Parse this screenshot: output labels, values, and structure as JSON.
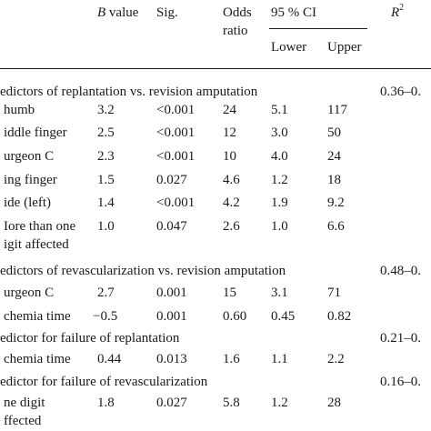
{
  "header": {
    "b_symbol": "B",
    "b_rest": " value",
    "sig": "Sig.",
    "odds_line1": "Odds",
    "odds_line2": "ratio",
    "ci": "95 % CI",
    "lower": "Lower",
    "upper": "Upper",
    "r2_symbol": "R",
    "r2_exp": "2"
  },
  "sections": [
    {
      "title": "edictors of replantation vs. revision amputation",
      "r2": "0.36–0.",
      "rows": [
        {
          "label": "humb",
          "b": "3.2",
          "sig": "<0.001",
          "odds": "24",
          "lower": "5.1",
          "upper": "117"
        },
        {
          "label": "iddle finger",
          "b": "2.5",
          "sig": "<0.001",
          "odds": "12",
          "lower": "3.0",
          "upper": "50"
        },
        {
          "label": "urgeon C",
          "b": "2.3",
          "sig": "<0.001",
          "odds": "10",
          "lower": "4.0",
          "upper": "24"
        },
        {
          "label": "ing finger",
          "b": "1.5",
          "sig": "0.027",
          "odds": "4.6",
          "lower": "1.2",
          "upper": "18"
        },
        {
          "label": "ide (left)",
          "b": "1.4",
          "sig": "<0.001",
          "odds": "4.2",
          "lower": "1.9",
          "upper": "9.2"
        },
        {
          "label": "Iore than one",
          "label2": "igit affected",
          "b": "1.0",
          "sig": "0.047",
          "odds": "2.6",
          "lower": "1.0",
          "upper": "6.6"
        }
      ]
    },
    {
      "title": "edictors of revascularization vs. revision amputation",
      "r2": "0.48–0.",
      "rows": [
        {
          "label": "urgeon C",
          "b": "2.7",
          "sig": "0.001",
          "odds": "15",
          "lower": "3.1",
          "upper": "71"
        },
        {
          "label": "chemia time",
          "b": "−0.5",
          "sig": "0.001",
          "odds": "0.60",
          "lower": "0.45",
          "upper": "0.82"
        }
      ]
    },
    {
      "title": "edictor for failure of replantation",
      "r2": "0.21–0.",
      "rows": [
        {
          "label": "chemia time",
          "b": "0.44",
          "sig": "0.013",
          "odds": "1.6",
          "lower": "1.1",
          "upper": "2.2"
        }
      ]
    },
    {
      "title": "edictor for failure of revascularization",
      "r2": "0.16–0.",
      "rows": [
        {
          "label": "ne digit",
          "label2": "ffected",
          "b": "1.8",
          "sig": "0.027",
          "odds": "5.8",
          "lower": "1.2",
          "upper": "28"
        }
      ]
    }
  ]
}
